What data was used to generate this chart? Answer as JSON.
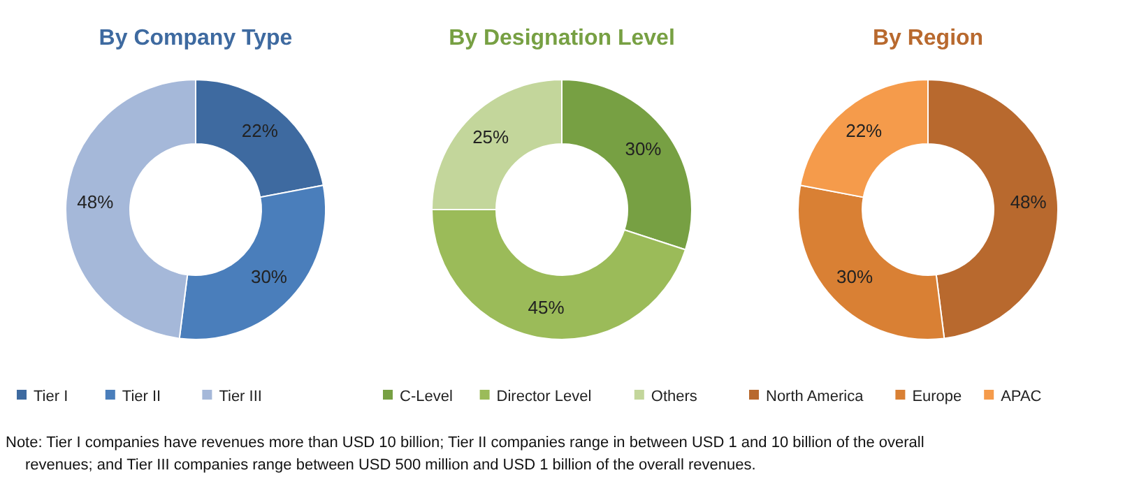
{
  "chart_data": [
    {
      "type": "donut",
      "title": "By Company Type",
      "categories": [
        "Tier I",
        "Tier II",
        "Tier III"
      ],
      "values": [
        22,
        30,
        48
      ],
      "colors": [
        "#3e6aa0",
        "#4a7ebb",
        "#a5b8d9"
      ],
      "value_labels": [
        "22%",
        "30%",
        "48%"
      ],
      "legend": "bottom",
      "annotations": [
        "Note: Tier I companies have revenues more than USD 10 billion; Tier II companies range in between USD 1 and 10 billion of the overall revenues; and Tier III companies range between USD 500 million and USD 1 billion of the overall revenues."
      ]
    },
    {
      "type": "donut",
      "title": "By Designation Level",
      "categories": [
        "C-Level",
        "Director Level",
        "Others"
      ],
      "values": [
        30,
        45,
        25
      ],
      "colors": [
        "#77a043",
        "#9bbb59",
        "#c3d69b"
      ],
      "value_labels": [
        "30%",
        "45%",
        "25%"
      ],
      "legend": "bottom"
    },
    {
      "type": "donut",
      "title": "By Region",
      "categories": [
        "North America",
        "Europe",
        "APAC"
      ],
      "values": [
        48,
        30,
        22
      ],
      "colors": [
        "#b8692e",
        "#d98034",
        "#f59b4b"
      ],
      "value_labels": [
        "48%",
        "30%",
        "22%"
      ],
      "legend": "bottom"
    }
  ]
}
